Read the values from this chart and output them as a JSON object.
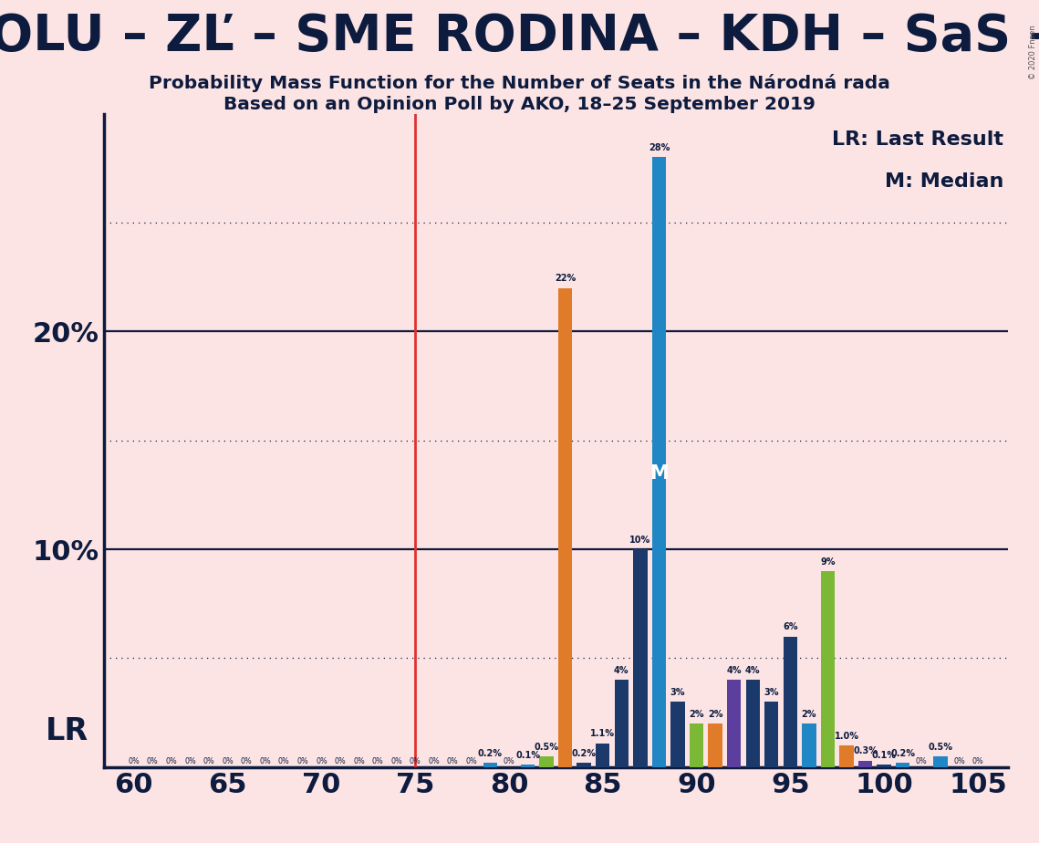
{
  "title_line1": "Probability Mass Function for the Number of Seats in the Národná rada",
  "title_line2": "Based on an Opinion Poll by AKO, 18–25 September 2019",
  "scrolling_text": "OLU – ZĽ – SME RODINA – KDH – SaS – OĽaNO – MOS",
  "background_color": "#fce4e4",
  "solid_hlines": [
    10,
    20
  ],
  "dotted_hlines": [
    5,
    15,
    25
  ],
  "lr_line_x": 75,
  "median_marker_x": 88,
  "median_marker_y": 13.5,
  "legend_lr": "LR: Last Result",
  "legend_m": "M: Median",
  "lr_label": "LR",
  "ylim": [
    0,
    30
  ],
  "xlim_left": 58.4,
  "xlim_right": 106.6,
  "bars": [
    {
      "x": 60,
      "height": 0.0,
      "color": "#1b3a6b",
      "label": "0%"
    },
    {
      "x": 61,
      "height": 0.0,
      "color": "#1b3a6b",
      "label": "0%"
    },
    {
      "x": 62,
      "height": 0.0,
      "color": "#1b3a6b",
      "label": "0%"
    },
    {
      "x": 63,
      "height": 0.0,
      "color": "#1b3a6b",
      "label": "0%"
    },
    {
      "x": 64,
      "height": 0.0,
      "color": "#1b3a6b",
      "label": "0%"
    },
    {
      "x": 65,
      "height": 0.0,
      "color": "#1b3a6b",
      "label": "0%"
    },
    {
      "x": 66,
      "height": 0.0,
      "color": "#1b3a6b",
      "label": "0%"
    },
    {
      "x": 67,
      "height": 0.0,
      "color": "#1b3a6b",
      "label": "0%"
    },
    {
      "x": 68,
      "height": 0.0,
      "color": "#1b3a6b",
      "label": "0%"
    },
    {
      "x": 69,
      "height": 0.0,
      "color": "#1b3a6b",
      "label": "0%"
    },
    {
      "x": 70,
      "height": 0.0,
      "color": "#1b3a6b",
      "label": "0%"
    },
    {
      "x": 71,
      "height": 0.0,
      "color": "#1b3a6b",
      "label": "0%"
    },
    {
      "x": 72,
      "height": 0.0,
      "color": "#1b3a6b",
      "label": "0%"
    },
    {
      "x": 73,
      "height": 0.0,
      "color": "#1b3a6b",
      "label": "0%"
    },
    {
      "x": 74,
      "height": 0.0,
      "color": "#1b3a6b",
      "label": "0%"
    },
    {
      "x": 75,
      "height": 0.0,
      "color": "#1b3a6b",
      "label": "0%"
    },
    {
      "x": 76,
      "height": 0.0,
      "color": "#1b3a6b",
      "label": "0%"
    },
    {
      "x": 77,
      "height": 0.0,
      "color": "#1b3a6b",
      "label": "0%"
    },
    {
      "x": 78,
      "height": 0.0,
      "color": "#1b3a6b",
      "label": "0%"
    },
    {
      "x": 79,
      "height": 0.2,
      "color": "#2186c4",
      "label": "0.2%"
    },
    {
      "x": 80,
      "height": 0.0,
      "color": "#1b3a6b",
      "label": "0%"
    },
    {
      "x": 81,
      "height": 0.1,
      "color": "#2186c4",
      "label": "0.1%"
    },
    {
      "x": 82,
      "height": 0.5,
      "color": "#7bb836",
      "label": "0.5%"
    },
    {
      "x": 83,
      "height": 22.0,
      "color": "#e07b2a",
      "label": "22%"
    },
    {
      "x": 84,
      "height": 0.2,
      "color": "#1b3a6b",
      "label": "0.2%"
    },
    {
      "x": 85,
      "height": 1.1,
      "color": "#1b3a6b",
      "label": "1.1%"
    },
    {
      "x": 86,
      "height": 4.0,
      "color": "#1b3a6b",
      "label": "4%"
    },
    {
      "x": 87,
      "height": 10.0,
      "color": "#1b3a6b",
      "label": "10%"
    },
    {
      "x": 88,
      "height": 28.0,
      "color": "#2186c4",
      "label": "28%"
    },
    {
      "x": 89,
      "height": 3.0,
      "color": "#1b3a6b",
      "label": "3%"
    },
    {
      "x": 90,
      "height": 2.0,
      "color": "#7bb836",
      "label": "2%"
    },
    {
      "x": 91,
      "height": 2.0,
      "color": "#e07b2a",
      "label": "2%"
    },
    {
      "x": 92,
      "height": 4.0,
      "color": "#5b3e9e",
      "label": "4%"
    },
    {
      "x": 93,
      "height": 4.0,
      "color": "#1b3a6b",
      "label": "4%"
    },
    {
      "x": 94,
      "height": 3.0,
      "color": "#1b3a6b",
      "label": "3%"
    },
    {
      "x": 95,
      "height": 6.0,
      "color": "#1b3a6b",
      "label": "6%"
    },
    {
      "x": 96,
      "height": 2.0,
      "color": "#2186c4",
      "label": "2%"
    },
    {
      "x": 97,
      "height": 9.0,
      "color": "#7bb836",
      "label": "9%"
    },
    {
      "x": 98,
      "height": 1.0,
      "color": "#e07b2a",
      "label": "1.0%"
    },
    {
      "x": 99,
      "height": 0.3,
      "color": "#5b3e9e",
      "label": "0.3%"
    },
    {
      "x": 100,
      "height": 0.1,
      "color": "#1b3a6b",
      "label": "0.1%"
    },
    {
      "x": 101,
      "height": 0.2,
      "color": "#2186c4",
      "label": "0.2%"
    },
    {
      "x": 102,
      "height": 0.0,
      "color": "#1b3a6b",
      "label": "0%"
    },
    {
      "x": 103,
      "height": 0.5,
      "color": "#2186c4",
      "label": "0.5%"
    },
    {
      "x": 104,
      "height": 0.0,
      "color": "#1b3a6b",
      "label": "0%"
    },
    {
      "x": 105,
      "height": 0.0,
      "color": "#1b3a6b",
      "label": "0%"
    }
  ]
}
